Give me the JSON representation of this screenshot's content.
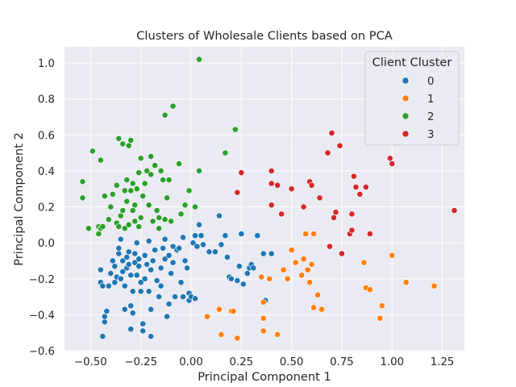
{
  "chart_data": {
    "type": "scatter",
    "title": "Clusters of Wholesale Clients based on PCA",
    "xlabel": "Principal Component 1",
    "ylabel": "Principal Component 2",
    "xlim": [
      -0.63,
      1.36
    ],
    "ylim": [
      -0.6,
      1.09
    ],
    "xticks": [
      -0.5,
      -0.25,
      0.0,
      0.25,
      0.5,
      0.75,
      1.0,
      1.25
    ],
    "xtick_labels": [
      "−0.50",
      "−0.25",
      "0.00",
      "0.25",
      "0.50",
      "0.75",
      "1.00",
      "1.25"
    ],
    "yticks": [
      -0.6,
      -0.4,
      -0.2,
      0.0,
      0.2,
      0.4,
      0.6,
      0.8,
      1.0
    ],
    "ytick_labels": [
      "−0.6",
      "−0.4",
      "−0.2",
      "0.0",
      "0.2",
      "0.4",
      "0.6",
      "0.8",
      "1.0"
    ],
    "grid": true,
    "background": "#eaeaf2",
    "legend": {
      "title": "Client Cluster",
      "placement": "top-right"
    },
    "series": [
      {
        "name": "0",
        "color": "#1f77b4",
        "points": [
          [
            -0.44,
            -0.52
          ],
          [
            -0.43,
            -0.44
          ],
          [
            -0.43,
            -0.41
          ],
          [
            -0.42,
            -0.38
          ],
          [
            -0.45,
            -0.22
          ],
          [
            -0.45,
            -0.15
          ],
          [
            -0.44,
            -0.24
          ],
          [
            -0.41,
            -0.24
          ],
          [
            -0.4,
            -0.17
          ],
          [
            -0.39,
            -0.1
          ],
          [
            -0.38,
            -0.13
          ],
          [
            -0.38,
            -0.22
          ],
          [
            -0.37,
            -0.19
          ],
          [
            -0.36,
            -0.06
          ],
          [
            -0.36,
            -0.03
          ],
          [
            -0.35,
            0.02
          ],
          [
            -0.35,
            -0.2
          ],
          [
            -0.34,
            -0.16
          ],
          [
            -0.34,
            -0.1
          ],
          [
            -0.33,
            -0.37
          ],
          [
            -0.33,
            -0.24
          ],
          [
            -0.32,
            -0.14
          ],
          [
            -0.32,
            -0.08
          ],
          [
            -0.31,
            -0.05
          ],
          [
            -0.31,
            -0.12
          ],
          [
            -0.3,
            -0.18
          ],
          [
            -0.3,
            -0.35
          ],
          [
            -0.3,
            -0.48
          ],
          [
            -0.29,
            -0.39
          ],
          [
            -0.29,
            -0.27
          ],
          [
            -0.28,
            -0.06
          ],
          [
            -0.28,
            -0.11
          ],
          [
            -0.27,
            -0.18
          ],
          [
            -0.27,
            -0.0
          ],
          [
            -0.26,
            -0.09
          ],
          [
            -0.26,
            -0.13
          ],
          [
            -0.25,
            -0.22
          ],
          [
            -0.25,
            -0.27
          ],
          [
            -0.24,
            -0.49
          ],
          [
            -0.24,
            -0.45
          ],
          [
            -0.23,
            -0.2
          ],
          [
            -0.23,
            -0.07
          ],
          [
            -0.22,
            -0.12
          ],
          [
            -0.21,
            0.01
          ],
          [
            -0.21,
            -0.27
          ],
          [
            -0.2,
            -0.37
          ],
          [
            -0.2,
            -0.52
          ],
          [
            -0.2,
            -0.15
          ],
          [
            -0.19,
            -0.1
          ],
          [
            -0.18,
            -0.04
          ],
          [
            -0.17,
            -0.21
          ],
          [
            -0.16,
            -0.3
          ],
          [
            -0.15,
            -0.14
          ],
          [
            -0.15,
            -0.24
          ],
          [
            -0.14,
            -0.03
          ],
          [
            -0.13,
            0.02
          ],
          [
            -0.13,
            -0.09
          ],
          [
            -0.12,
            -0.41
          ],
          [
            -0.11,
            -0.34
          ],
          [
            -0.11,
            -0.07
          ],
          [
            -0.1,
            -0.17
          ],
          [
            -0.09,
            -0.02
          ],
          [
            -0.09,
            -0.11
          ],
          [
            -0.08,
            -0.3
          ],
          [
            -0.07,
            -0.04
          ],
          [
            -0.06,
            -0.03
          ],
          [
            -0.05,
            -0.22
          ],
          [
            -0.04,
            -0.3
          ],
          [
            -0.04,
            0.03
          ],
          [
            -0.03,
            -0.1
          ],
          [
            -0.02,
            -0.14
          ],
          [
            -0.01,
            -0.28
          ],
          [
            -0.01,
            -0.32
          ],
          [
            0.0,
            -0.3
          ],
          [
            0.01,
            0.0
          ],
          [
            0.02,
            -0.31
          ],
          [
            0.02,
            0.04
          ],
          [
            0.03,
            -0.02
          ],
          [
            0.04,
            0.1
          ],
          [
            0.05,
            0.04
          ],
          [
            0.06,
            -0.01
          ],
          [
            0.09,
            -0.05
          ],
          [
            0.12,
            -0.05
          ],
          [
            0.14,
            0.15
          ],
          [
            0.15,
            -0.01
          ],
          [
            0.17,
            0.04
          ],
          [
            0.18,
            -0.08
          ],
          [
            0.19,
            -0.19
          ],
          [
            0.2,
            -0.2
          ],
          [
            0.23,
            -0.21
          ],
          [
            0.24,
            -0.13
          ],
          [
            0.25,
            0.05
          ],
          [
            0.26,
            -0.23
          ],
          [
            0.28,
            -0.17
          ],
          [
            0.29,
            -0.14
          ],
          [
            0.3,
            -0.12
          ],
          [
            0.31,
            -0.14
          ],
          [
            0.33,
            0.04
          ],
          [
            0.36,
            -0.06
          ],
          [
            0.37,
            -0.32
          ],
          [
            0.4,
            -0.06
          ]
        ]
      },
      {
        "name": "1",
        "color": "#ff7f0e",
        "points": [
          [
            0.08,
            -0.41
          ],
          [
            0.14,
            -0.37
          ],
          [
            0.15,
            -0.51
          ],
          [
            0.2,
            -0.38
          ],
          [
            0.21,
            -0.38
          ],
          [
            0.23,
            -0.53
          ],
          [
            0.35,
            -0.19
          ],
          [
            0.36,
            -0.33
          ],
          [
            0.36,
            -0.42
          ],
          [
            0.36,
            -0.49
          ],
          [
            0.39,
            -0.2
          ],
          [
            0.43,
            -0.51
          ],
          [
            0.46,
            -0.15
          ],
          [
            0.48,
            -0.2
          ],
          [
            0.5,
            -0.04
          ],
          [
            0.52,
            -0.11
          ],
          [
            0.55,
            -0.18
          ],
          [
            0.56,
            -0.09
          ],
          [
            0.57,
            0.05
          ],
          [
            0.58,
            -0.15
          ],
          [
            0.59,
            -0.22
          ],
          [
            0.6,
            -0.12
          ],
          [
            0.61,
            0.05
          ],
          [
            0.61,
            -0.36
          ],
          [
            0.63,
            -0.29
          ],
          [
            0.65,
            -0.37
          ],
          [
            0.86,
            -0.11
          ],
          [
            0.87,
            -0.25
          ],
          [
            0.89,
            -0.26
          ],
          [
            0.94,
            -0.42
          ],
          [
            0.95,
            -0.35
          ],
          [
            1.0,
            -0.07
          ],
          [
            1.07,
            -0.22
          ],
          [
            1.21,
            -0.24
          ]
        ]
      },
      {
        "name": "2",
        "color": "#2ca02c",
        "points": [
          [
            -0.54,
            0.34
          ],
          [
            -0.54,
            0.25
          ],
          [
            -0.51,
            0.08
          ],
          [
            -0.49,
            0.51
          ],
          [
            -0.46,
            0.05
          ],
          [
            -0.46,
            0.09
          ],
          [
            -0.45,
            0.46
          ],
          [
            -0.45,
            0.08
          ],
          [
            -0.44,
            0.09
          ],
          [
            -0.43,
            0.26
          ],
          [
            -0.41,
            0.13
          ],
          [
            -0.4,
            0.2
          ],
          [
            -0.39,
            0.27
          ],
          [
            -0.37,
            0.32
          ],
          [
            -0.37,
            0.11
          ],
          [
            -0.36,
            0.58
          ],
          [
            -0.36,
            0.09
          ],
          [
            -0.35,
            0.15
          ],
          [
            -0.34,
            0.55
          ],
          [
            -0.34,
            0.18
          ],
          [
            -0.33,
            0.29
          ],
          [
            -0.33,
            0.08
          ],
          [
            -0.32,
            0.35
          ],
          [
            -0.32,
            0.23
          ],
          [
            -0.31,
            0.54
          ],
          [
            -0.31,
            0.1
          ],
          [
            -0.3,
            0.57
          ],
          [
            -0.3,
            0.29
          ],
          [
            -0.29,
            0.33
          ],
          [
            -0.29,
            0.18
          ],
          [
            -0.28,
            0.21
          ],
          [
            -0.28,
            0.12
          ],
          [
            -0.27,
            0.3
          ],
          [
            -0.26,
            0.39
          ],
          [
            -0.26,
            0.09
          ],
          [
            -0.25,
            0.47
          ],
          [
            -0.25,
            0.14
          ],
          [
            -0.24,
            0.26
          ],
          [
            -0.23,
            0.33
          ],
          [
            -0.22,
            0.4
          ],
          [
            -0.21,
            0.21
          ],
          [
            -0.2,
            0.48
          ],
          [
            -0.2,
            0.38
          ],
          [
            -0.19,
            0.12
          ],
          [
            -0.18,
            0.43
          ],
          [
            -0.17,
            0.18
          ],
          [
            -0.16,
            0.08
          ],
          [
            -0.16,
            0.14
          ],
          [
            -0.15,
            0.4
          ],
          [
            -0.14,
            0.35
          ],
          [
            -0.13,
            0.13
          ],
          [
            -0.13,
            0.71
          ],
          [
            -0.12,
            0.25
          ],
          [
            -0.11,
            0.35
          ],
          [
            -0.1,
            0.12
          ],
          [
            -0.09,
            0.76
          ],
          [
            -0.06,
            0.44
          ],
          [
            -0.05,
            0.16
          ],
          [
            -0.03,
            0.21
          ],
          [
            -0.01,
            0.29
          ],
          [
            0.02,
            0.2
          ],
          [
            0.04,
            0.4
          ],
          [
            0.04,
            1.02
          ],
          [
            0.17,
            0.5
          ],
          [
            0.22,
            0.63
          ]
        ]
      },
      {
        "name": "3",
        "color": "#d62728",
        "points": [
          [
            0.23,
            0.28
          ],
          [
            0.25,
            0.39
          ],
          [
            0.4,
            0.33
          ],
          [
            0.4,
            0.4
          ],
          [
            0.4,
            0.21
          ],
          [
            0.43,
            0.32
          ],
          [
            0.45,
            0.16
          ],
          [
            0.5,
            0.3
          ],
          [
            0.56,
            0.2
          ],
          [
            0.59,
            0.34
          ],
          [
            0.6,
            0.32
          ],
          [
            0.64,
            0.25
          ],
          [
            0.68,
            0.5
          ],
          [
            0.69,
            -0.02
          ],
          [
            0.7,
            0.61
          ],
          [
            0.71,
            0.14
          ],
          [
            0.72,
            0.17
          ],
          [
            0.74,
            0.54
          ],
          [
            0.75,
            -0.06
          ],
          [
            0.79,
            0.05
          ],
          [
            0.8,
            0.07
          ],
          [
            0.8,
            0.16
          ],
          [
            0.81,
            0.37
          ],
          [
            0.82,
            0.31
          ],
          [
            0.84,
            0.27
          ],
          [
            0.87,
            0.31
          ],
          [
            0.89,
            0.05
          ],
          [
            0.99,
            0.47
          ],
          [
            1.0,
            0.44
          ],
          [
            1.31,
            0.18
          ]
        ]
      }
    ]
  }
}
